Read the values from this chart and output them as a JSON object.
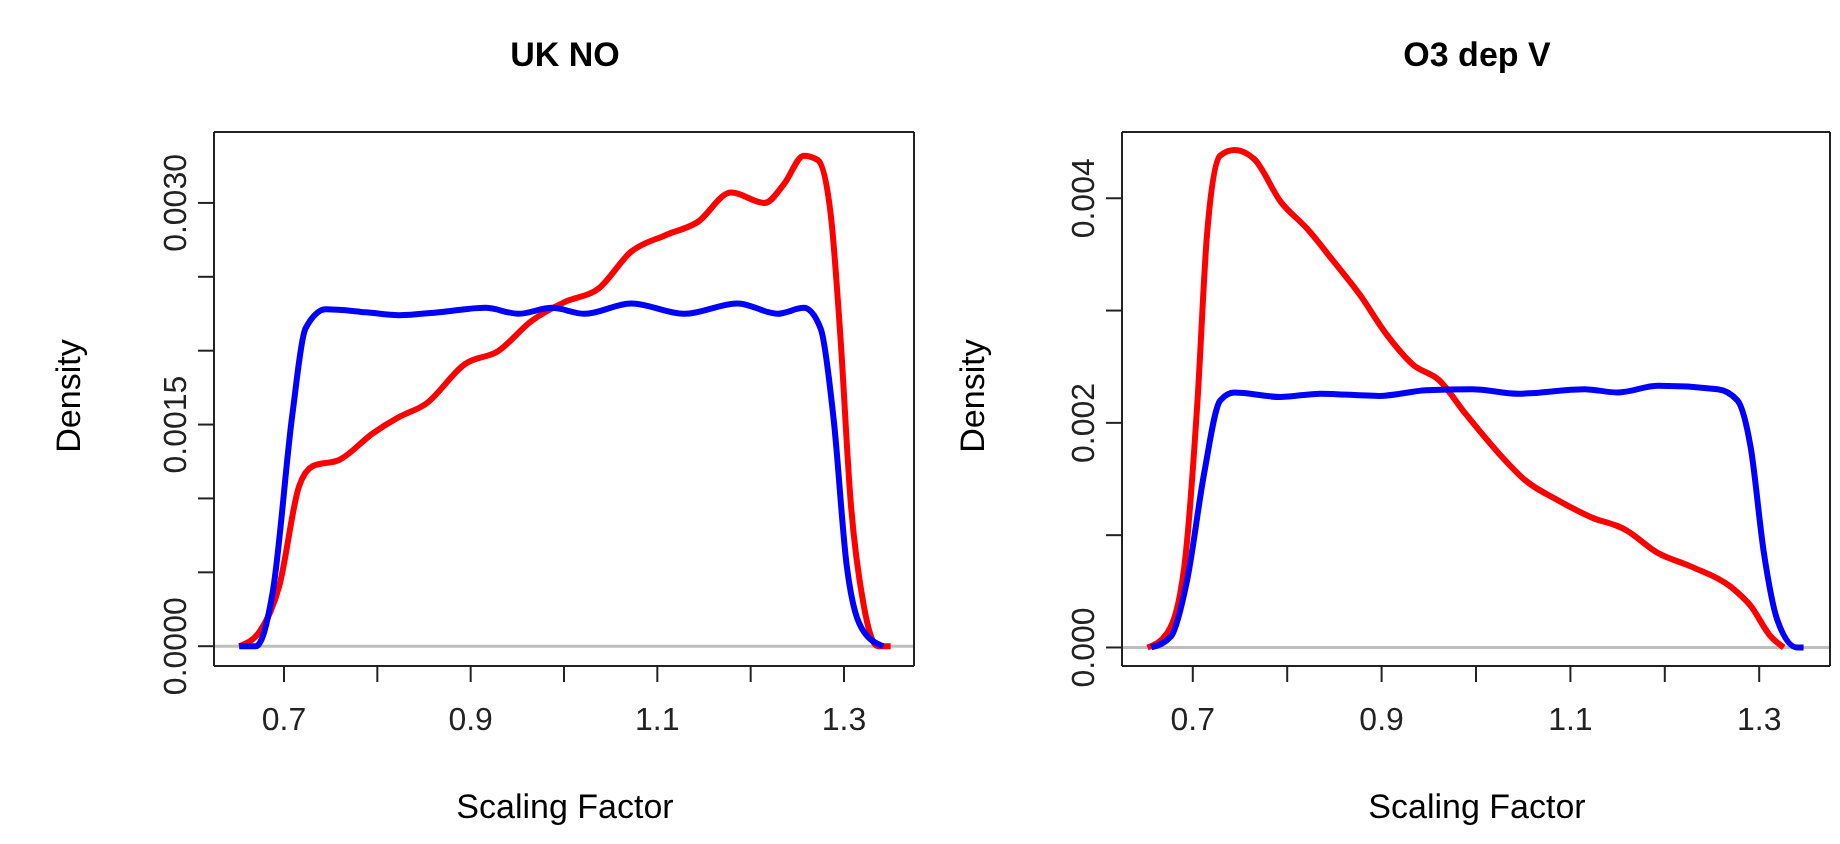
{
  "chart_data": [
    {
      "type": "line",
      "title": "UK NO",
      "xlabel": "Scaling Factor",
      "ylabel": "Density",
      "xlim": [
        0.625,
        1.375
      ],
      "ylim": [
        -0.000134,
        0.00348
      ],
      "xticks": [
        0.7,
        {
          "value": 0.8,
          "label": null
        },
        0.9,
        {
          "value": 1.0,
          "label": null
        },
        1.1,
        {
          "value": 1.2,
          "label": null
        },
        1.3
      ],
      "yticks": [
        {
          "value": 0,
          "label": "0.0000"
        },
        {
          "value": 0.0005,
          "label": null
        },
        {
          "value": 0.001,
          "label": null
        },
        {
          "value": 0.0015,
          "label": "0.0015"
        },
        {
          "value": 0.002,
          "label": null
        },
        {
          "value": 0.0025,
          "label": null
        },
        {
          "value": 0.003,
          "label": "0.0030"
        }
      ],
      "grid": false,
      "marker": "none",
      "line_style": "solid",
      "ref_lines": [
        {
          "axis": "y",
          "value": 0,
          "color": "#bebebe"
        }
      ],
      "series": [
        {
          "color": "#ff0000",
          "x": [
            0.652,
            0.674,
            0.695,
            0.716,
            0.731,
            0.759,
            0.795,
            0.823,
            0.852,
            0.894,
            0.93,
            0.965,
            1.001,
            1.037,
            1.072,
            1.108,
            1.143,
            1.179,
            1.215,
            1.236,
            1.257,
            1.272,
            1.286,
            1.296,
            1.307,
            1.321,
            1.336,
            1.35
          ],
          "values": [
            0,
            0.0001,
            0.00041,
            0.00108,
            0.00122,
            0.00126,
            0.00144,
            0.00155,
            0.00164,
            0.00191,
            0.002,
            0.0022,
            0.00233,
            0.00242,
            0.00267,
            0.00278,
            0.00287,
            0.00307,
            0.003,
            0.00313,
            0.00332,
            0.00329,
            0.00291,
            0.00211,
            0.00099,
            0.00028,
            0,
            0
          ]
        },
        {
          "color": "#0000ff",
          "x": [
            0.652,
            0.67,
            0.688,
            0.709,
            0.723,
            0.745,
            0.788,
            0.823,
            0.866,
            0.916,
            0.951,
            0.987,
            1.022,
            1.072,
            1.129,
            1.186,
            1.229,
            1.257,
            1.275,
            1.289,
            1.303,
            1.321,
            1.342
          ],
          "values": [
            0,
            0,
            0.00037,
            0.00157,
            0.00215,
            0.00228,
            0.00226,
            0.00224,
            0.00226,
            0.00229,
            0.00225,
            0.00229,
            0.00225,
            0.00232,
            0.00225,
            0.00232,
            0.00225,
            0.00229,
            0.00215,
            0.00153,
            0.00054,
            0.0001,
            0
          ]
        }
      ]
    },
    {
      "type": "line",
      "title": "O3 dep V",
      "xlabel": "Scaling Factor",
      "ylabel": "Density",
      "xlim": [
        0.625,
        1.375
      ],
      "ylim": [
        -0.000165,
        0.00459
      ],
      "xticks": [
        0.7,
        {
          "value": 0.8,
          "label": null
        },
        0.9,
        {
          "value": 1.0,
          "label": null
        },
        1.1,
        {
          "value": 1.2,
          "label": null
        },
        1.3
      ],
      "yticks": [
        {
          "value": 0,
          "label": "0.000"
        },
        {
          "value": 0.001,
          "label": null
        },
        {
          "value": 0.002,
          "label": "0.002"
        },
        {
          "value": 0.003,
          "label": null
        },
        {
          "value": 0.004,
          "label": "0.004"
        }
      ],
      "grid": false,
      "marker": "none",
      "line_style": "solid",
      "ref_lines": [
        {
          "axis": "y",
          "value": 0,
          "color": "#bebebe"
        }
      ],
      "series": [
        {
          "color": "#ff0000",
          "x": [
            0.652,
            0.673,
            0.691,
            0.705,
            0.715,
            0.729,
            0.744,
            0.765,
            0.793,
            0.821,
            0.849,
            0.877,
            0.905,
            0.933,
            0.961,
            0.989,
            1.024,
            1.052,
            1.087,
            1.122,
            1.158,
            1.193,
            1.228,
            1.27,
            1.291,
            1.312,
            1.326
          ],
          "values": [
            0,
            0.00013,
            0.00072,
            0.0022,
            0.00367,
            0.00438,
            0.00443,
            0.00435,
            0.00397,
            0.00373,
            0.00344,
            0.00314,
            0.00279,
            0.00252,
            0.00238,
            0.00208,
            0.00173,
            0.00149,
            0.00131,
            0.00116,
            0.00105,
            0.00084,
            0.00072,
            0.00054,
            0.00037,
            0.0001,
            0
          ]
        },
        {
          "color": "#0000ff",
          "x": [
            0.656,
            0.677,
            0.694,
            0.712,
            0.729,
            0.744,
            0.793,
            0.835,
            0.898,
            0.947,
            0.996,
            1.045,
            1.115,
            1.15,
            1.193,
            1.256,
            1.277,
            1.291,
            1.305,
            1.319,
            1.34,
            1.347
          ],
          "values": [
            0,
            0.0001,
            0.0006,
            0.00155,
            0.0022,
            0.00227,
            0.00223,
            0.00226,
            0.00224,
            0.00229,
            0.0023,
            0.00226,
            0.0023,
            0.00227,
            0.00233,
            0.0023,
            0.0022,
            0.00178,
            0.00084,
            0.00025,
            0,
            0
          ]
        }
      ]
    }
  ]
}
